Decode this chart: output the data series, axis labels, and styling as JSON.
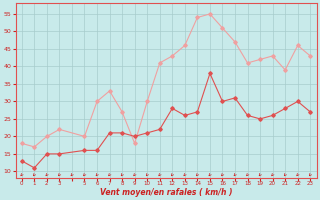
{
  "x": [
    0,
    1,
    2,
    3,
    4,
    5,
    6,
    7,
    8,
    9,
    10,
    11,
    12,
    13,
    14,
    15,
    16,
    17,
    18,
    19,
    20,
    21,
    22,
    23
  ],
  "wind_avg": [
    13,
    11,
    15,
    15,
    null,
    16,
    16,
    21,
    21,
    20,
    21,
    22,
    28,
    26,
    27,
    38,
    30,
    31,
    26,
    25,
    26,
    28,
    30,
    27
  ],
  "wind_gust": [
    18,
    17,
    20,
    22,
    null,
    20,
    30,
    33,
    27,
    18,
    30,
    41,
    43,
    46,
    54,
    55,
    51,
    47,
    41,
    42,
    43,
    39,
    46,
    43
  ],
  "avg_color": "#e05050",
  "gust_color": "#f0a0a0",
  "bg_color": "#c8eaea",
  "grid_color": "#a8cccc",
  "xlabel": "Vent moyen/en rafales ( km/h )",
  "ylabel_ticks": [
    10,
    15,
    20,
    25,
    30,
    35,
    40,
    45,
    50,
    55
  ],
  "xlim": [
    -0.5,
    23.5
  ],
  "ylim": [
    8,
    58
  ],
  "figsize": [
    3.2,
    2.0
  ],
  "dpi": 100,
  "tick_label_color": "#cc2222",
  "xlabel_color": "#cc2222",
  "arrow_color": "#cc2222"
}
